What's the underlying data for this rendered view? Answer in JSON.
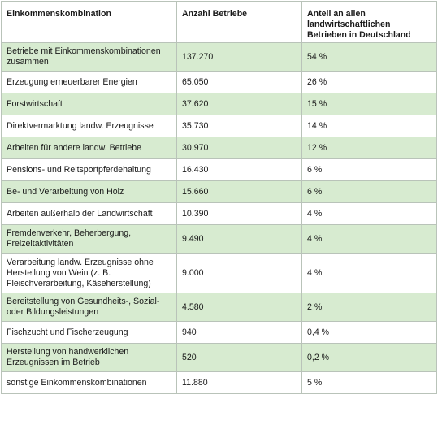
{
  "table": {
    "headers": [
      "Einkommenskombination",
      "Anzahl Betriebe",
      "Anteil an allen landwirtschaftlichen Betrieben in Deutschland"
    ],
    "rows": [
      {
        "label": "Betriebe mit Einkommenskombinationen zusammen",
        "count": "137.270",
        "share": "54 %"
      },
      {
        "label": "Erzeugung erneuerbarer Energien",
        "count": "65.050",
        "share": "26 %"
      },
      {
        "label": "Forstwirtschaft",
        "count": "37.620",
        "share": "15 %"
      },
      {
        "label": "Direktvermarktung landw. Erzeugnisse",
        "count": "35.730",
        "share": "14 %"
      },
      {
        "label": "Arbeiten für andere landw. Betriebe",
        "count": "30.970",
        "share": "12 %"
      },
      {
        "label": "Pensions- und Reitsportpferdehaltung",
        "count": "16.430",
        "share": "6 %"
      },
      {
        "label": "Be- und Verarbeitung von Holz",
        "count": "15.660",
        "share": "6 %"
      },
      {
        "label": "Arbeiten außerhalb der Landwirtschaft",
        "count": "10.390",
        "share": "4 %"
      },
      {
        "label": "Fremdenverkehr, Beherbergung, Freizeitaktivitäten",
        "count": "9.490",
        "share": "4 %"
      },
      {
        "label": "Verarbeitung landw. Erzeugnisse ohne Herstellung von Wein (z. B. Fleischverarbeitung, Käseherstellung)",
        "count": "9.000",
        "share": "4 %"
      },
      {
        "label": "Bereitstellung von Gesundheits-, Sozial- oder Bildungsleistungen",
        "count": "4.580",
        "share": "2 %"
      },
      {
        "label": "Fischzucht und Fischerzeugung",
        "count": "940",
        "share": "0,4 %"
      },
      {
        "label": "Herstellung von handwerklichen Erzeugnissen im Betrieb",
        "count": "520",
        "share": "0,2 %"
      },
      {
        "label": "sonstige Einkommenskombinationen",
        "count": "11.880",
        "share": "5 %"
      }
    ]
  },
  "colors": {
    "row_shade": "#d7ebd0",
    "row_plain": "#ffffff",
    "border": "#b9c3b9"
  }
}
